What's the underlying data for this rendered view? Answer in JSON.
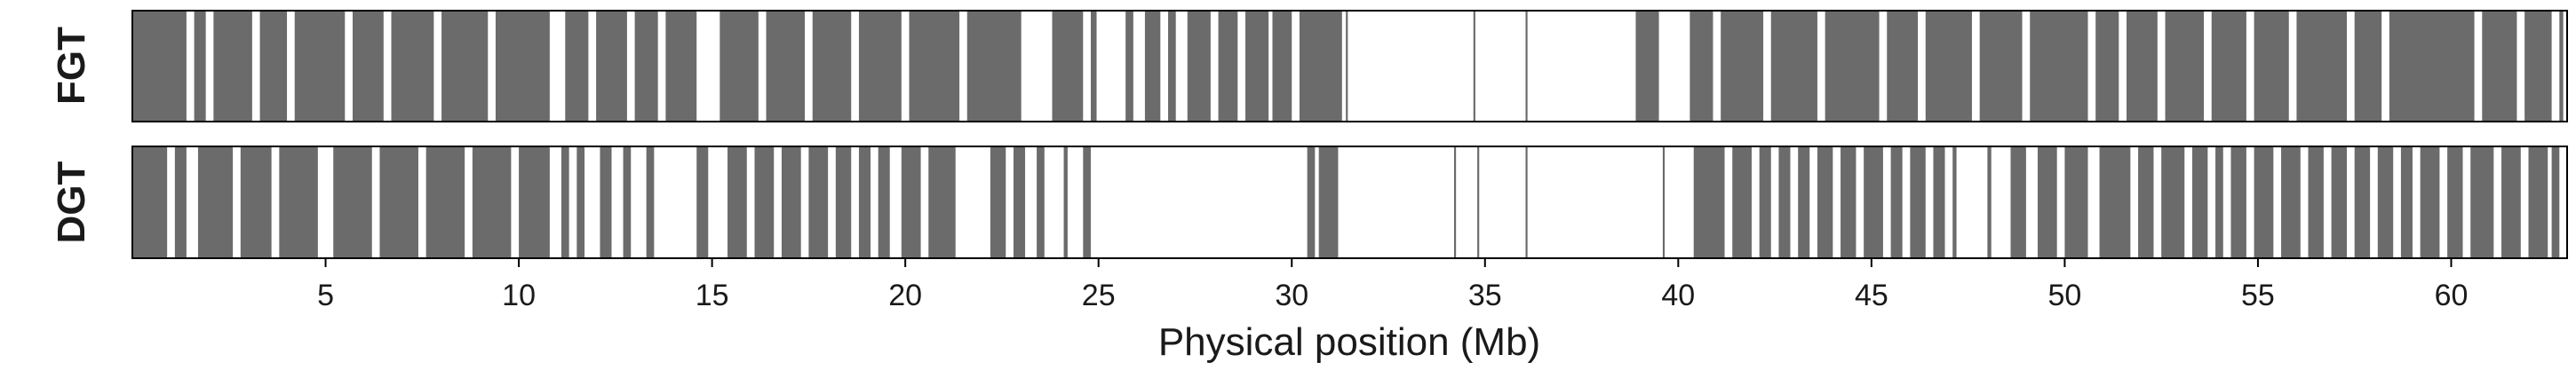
{
  "chart_data": {
    "type": "heatmap",
    "xlabel": "Physical position (Mb)",
    "xlim": [
      0,
      63
    ],
    "x_ticks": [
      5,
      10,
      15,
      20,
      25,
      30,
      35,
      40,
      45,
      50,
      55,
      60
    ],
    "grid": false,
    "bar_color": "#6b6b6b",
    "frame_color": "#000000",
    "rows": [
      {
        "label": "FGT",
        "segments": [
          [
            0.0,
            1.4
          ],
          [
            1.6,
            1.9
          ],
          [
            2.1,
            3.1
          ],
          [
            3.3,
            4.0
          ],
          [
            4.2,
            5.5
          ],
          [
            5.7,
            6.5
          ],
          [
            6.7,
            7.8
          ],
          [
            8.0,
            9.2
          ],
          [
            9.4,
            10.8
          ],
          [
            11.2,
            11.8
          ],
          [
            12.0,
            12.8
          ],
          [
            13.0,
            13.6
          ],
          [
            13.8,
            14.6
          ],
          [
            15.2,
            16.2
          ],
          [
            16.4,
            17.4
          ],
          [
            17.6,
            18.6
          ],
          [
            18.8,
            19.9
          ],
          [
            20.1,
            21.4
          ],
          [
            21.6,
            23.0
          ],
          [
            23.8,
            24.6
          ],
          [
            24.8,
            24.95
          ],
          [
            25.7,
            25.9
          ],
          [
            26.2,
            26.6
          ],
          [
            26.8,
            27.0
          ],
          [
            27.3,
            27.9
          ],
          [
            28.1,
            28.6
          ],
          [
            28.8,
            29.4
          ],
          [
            29.5,
            30.0
          ],
          [
            30.2,
            31.3
          ],
          [
            31.4,
            31.45
          ],
          [
            34.7,
            34.75
          ],
          [
            36.05,
            36.1
          ],
          [
            38.9,
            39.5
          ],
          [
            40.3,
            40.9
          ],
          [
            41.1,
            42.2
          ],
          [
            42.4,
            43.6
          ],
          [
            43.8,
            45.2
          ],
          [
            45.4,
            46.2
          ],
          [
            46.4,
            47.6
          ],
          [
            47.8,
            48.9
          ],
          [
            49.1,
            50.6
          ],
          [
            50.8,
            51.4
          ],
          [
            51.6,
            52.4
          ],
          [
            52.6,
            53.6
          ],
          [
            53.8,
            54.7
          ],
          [
            54.9,
            55.8
          ],
          [
            56.0,
            57.3
          ],
          [
            57.5,
            58.2
          ],
          [
            58.4,
            60.6
          ],
          [
            60.8,
            61.7
          ],
          [
            61.9,
            62.6
          ],
          [
            62.8,
            62.9
          ]
        ]
      },
      {
        "label": "DGT",
        "segments": [
          [
            0.0,
            0.9
          ],
          [
            1.1,
            1.4
          ],
          [
            1.7,
            2.6
          ],
          [
            2.8,
            3.6
          ],
          [
            3.8,
            4.8
          ],
          [
            5.2,
            6.2
          ],
          [
            6.4,
            7.4
          ],
          [
            7.6,
            8.6
          ],
          [
            8.8,
            9.8
          ],
          [
            10.0,
            10.8
          ],
          [
            11.1,
            11.3
          ],
          [
            11.5,
            11.7
          ],
          [
            12.1,
            12.4
          ],
          [
            12.7,
            12.9
          ],
          [
            13.3,
            13.5
          ],
          [
            14.6,
            14.9
          ],
          [
            15.4,
            15.9
          ],
          [
            16.1,
            16.6
          ],
          [
            16.8,
            17.3
          ],
          [
            17.5,
            18.0
          ],
          [
            18.2,
            18.6
          ],
          [
            18.8,
            19.1
          ],
          [
            19.3,
            19.6
          ],
          [
            19.9,
            20.4
          ],
          [
            20.6,
            21.3
          ],
          [
            22.2,
            22.6
          ],
          [
            22.8,
            23.1
          ],
          [
            23.4,
            23.6
          ],
          [
            24.1,
            24.2
          ],
          [
            24.6,
            24.8
          ],
          [
            30.4,
            30.6
          ],
          [
            30.7,
            31.2
          ],
          [
            34.2,
            34.25
          ],
          [
            34.8,
            34.85
          ],
          [
            36.05,
            36.1
          ],
          [
            39.6,
            39.65
          ],
          [
            40.4,
            41.2
          ],
          [
            41.4,
            41.9
          ],
          [
            42.1,
            42.4
          ],
          [
            42.6,
            42.9
          ],
          [
            43.1,
            43.4
          ],
          [
            43.6,
            44.0
          ],
          [
            44.2,
            44.6
          ],
          [
            44.8,
            45.3
          ],
          [
            45.5,
            45.8
          ],
          [
            46.0,
            46.4
          ],
          [
            46.6,
            46.9
          ],
          [
            47.1,
            47.2
          ],
          [
            48.0,
            48.1
          ],
          [
            48.6,
            49.0
          ],
          [
            49.3,
            49.8
          ],
          [
            50.0,
            50.6
          ],
          [
            50.9,
            51.7
          ],
          [
            51.9,
            52.3
          ],
          [
            52.5,
            53.1
          ],
          [
            53.3,
            53.7
          ],
          [
            53.9,
            54.1
          ],
          [
            54.3,
            54.7
          ],
          [
            54.9,
            55.4
          ],
          [
            55.6,
            56.1
          ],
          [
            56.3,
            56.7
          ],
          [
            56.9,
            57.3
          ],
          [
            57.5,
            57.9
          ],
          [
            58.1,
            58.5
          ],
          [
            58.7,
            59.0
          ],
          [
            59.2,
            59.7
          ],
          [
            59.9,
            60.3
          ],
          [
            60.5,
            61.1
          ],
          [
            61.3,
            61.8
          ],
          [
            62.0,
            62.5
          ],
          [
            62.6,
            62.8
          ]
        ]
      }
    ]
  }
}
